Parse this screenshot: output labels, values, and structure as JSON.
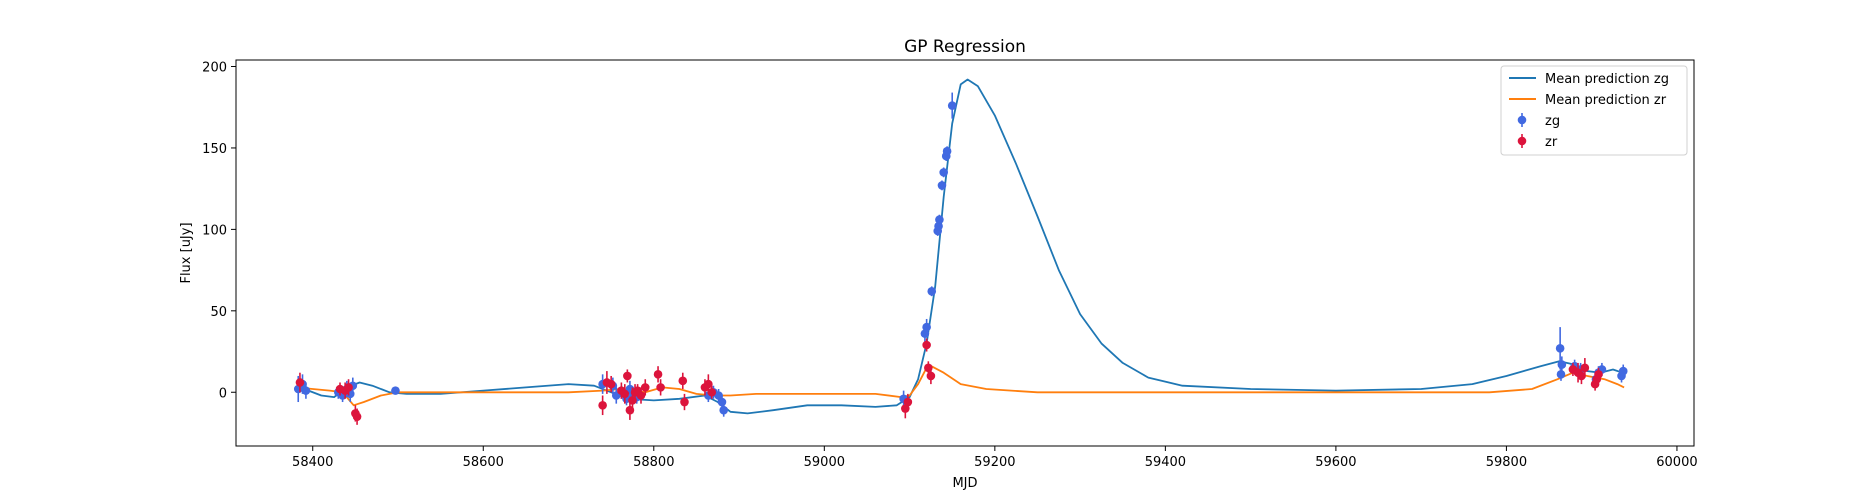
{
  "chart_data": {
    "type": "line",
    "title": "GP Regression",
    "xlabel": "MJD",
    "ylabel": "Flux [uJy]",
    "xlim": [
      58310,
      60020
    ],
    "ylim": [
      -33,
      204
    ],
    "x_ticks": [
      58400,
      58600,
      58800,
      59000,
      59200,
      59400,
      59600,
      59800,
      60000
    ],
    "y_ticks": [
      0,
      50,
      100,
      150,
      200
    ],
    "x_tick_labels": [
      "58400",
      "58600",
      "58800",
      "59000",
      "59200",
      "59400",
      "59600",
      "59800",
      "60000"
    ],
    "y_tick_labels": [
      "0",
      "50",
      "100",
      "150",
      "200"
    ],
    "grid": false,
    "legend": {
      "position": "top-right",
      "entries": [
        "Mean prediction zg",
        "Mean prediction zr",
        "zg",
        "zr"
      ]
    },
    "series": [
      {
        "name": "Mean prediction zg",
        "kind": "line",
        "color": "#1f77b4",
        "points": [
          [
            58380,
            3
          ],
          [
            58395,
            1
          ],
          [
            58410,
            -2
          ],
          [
            58425,
            -3
          ],
          [
            58440,
            3
          ],
          [
            58455,
            6
          ],
          [
            58470,
            4
          ],
          [
            58490,
            0
          ],
          [
            58510,
            -1
          ],
          [
            58550,
            -1
          ],
          [
            58600,
            1
          ],
          [
            58650,
            3
          ],
          [
            58700,
            5
          ],
          [
            58730,
            4
          ],
          [
            58750,
            0
          ],
          [
            58770,
            -4
          ],
          [
            58800,
            -5
          ],
          [
            58830,
            -4
          ],
          [
            58860,
            -2
          ],
          [
            58875,
            -6
          ],
          [
            58890,
            -12
          ],
          [
            58910,
            -13
          ],
          [
            58940,
            -11
          ],
          [
            58980,
            -8
          ],
          [
            59020,
            -8
          ],
          [
            59060,
            -9
          ],
          [
            59085,
            -8
          ],
          [
            59100,
            -3
          ],
          [
            59110,
            8
          ],
          [
            59120,
            30
          ],
          [
            59130,
            65
          ],
          [
            59140,
            120
          ],
          [
            59150,
            165
          ],
          [
            59160,
            189
          ],
          [
            59168,
            192
          ],
          [
            59180,
            188
          ],
          [
            59200,
            170
          ],
          [
            59225,
            140
          ],
          [
            59250,
            108
          ],
          [
            59275,
            75
          ],
          [
            59300,
            48
          ],
          [
            59325,
            30
          ],
          [
            59350,
            18
          ],
          [
            59380,
            9
          ],
          [
            59420,
            4
          ],
          [
            59500,
            2
          ],
          [
            59600,
            1
          ],
          [
            59700,
            2
          ],
          [
            59760,
            5
          ],
          [
            59800,
            10
          ],
          [
            59840,
            16
          ],
          [
            59862,
            19
          ],
          [
            59880,
            17
          ],
          [
            59895,
            13
          ],
          [
            59910,
            12
          ],
          [
            59925,
            14
          ],
          [
            59936,
            12
          ]
        ]
      },
      {
        "name": "Mean prediction zr",
        "kind": "line",
        "color": "#ff7f0e",
        "points": [
          [
            58380,
            3
          ],
          [
            58400,
            2
          ],
          [
            58420,
            1
          ],
          [
            58435,
            0
          ],
          [
            58448,
            -8
          ],
          [
            58460,
            -6
          ],
          [
            58480,
            -2
          ],
          [
            58500,
            0
          ],
          [
            58600,
            0
          ],
          [
            58700,
            0
          ],
          [
            58740,
            1
          ],
          [
            58760,
            2
          ],
          [
            58790,
            0
          ],
          [
            58810,
            3
          ],
          [
            58830,
            2
          ],
          [
            58850,
            -1
          ],
          [
            58870,
            -2
          ],
          [
            58890,
            -2
          ],
          [
            58920,
            -1
          ],
          [
            59000,
            -1
          ],
          [
            59060,
            -1
          ],
          [
            59090,
            -3
          ],
          [
            59100,
            -2
          ],
          [
            59110,
            5
          ],
          [
            59122,
            17
          ],
          [
            59140,
            12
          ],
          [
            59160,
            5
          ],
          [
            59190,
            2
          ],
          [
            59250,
            0
          ],
          [
            59400,
            0
          ],
          [
            59600,
            0
          ],
          [
            59780,
            0
          ],
          [
            59830,
            2
          ],
          [
            59860,
            8
          ],
          [
            59878,
            12
          ],
          [
            59895,
            10
          ],
          [
            59915,
            8
          ],
          [
            59930,
            5
          ],
          [
            59938,
            3
          ]
        ]
      },
      {
        "name": "zg",
        "kind": "scatter",
        "color": "#4169e1",
        "points": [
          [
            58383,
            2,
            8
          ],
          [
            58388,
            5,
            6
          ],
          [
            58392,
            1,
            5
          ],
          [
            58430,
            0,
            4
          ],
          [
            58435,
            -2,
            4
          ],
          [
            58440,
            2,
            5
          ],
          [
            58444,
            -1,
            5
          ],
          [
            58447,
            4,
            5
          ],
          [
            58497,
            1,
            2
          ],
          [
            58740,
            5,
            6
          ],
          [
            58752,
            4,
            5
          ],
          [
            58756,
            -2,
            5
          ],
          [
            58762,
            0,
            4
          ],
          [
            58768,
            -4,
            4
          ],
          [
            58772,
            2,
            5
          ],
          [
            58776,
            -1,
            4
          ],
          [
            58780,
            -3,
            4
          ],
          [
            58864,
            -2,
            4
          ],
          [
            58870,
            0,
            4
          ],
          [
            58876,
            -2,
            4
          ],
          [
            58880,
            -6,
            4
          ],
          [
            58882,
            -11,
            4
          ],
          [
            59093,
            -4,
            5
          ],
          [
            59118,
            36,
            5
          ],
          [
            59120,
            40,
            5
          ],
          [
            59126,
            62,
            3
          ],
          [
            59133,
            99,
            3
          ],
          [
            59134,
            102,
            3
          ],
          [
            59135,
            106,
            3
          ],
          [
            59138,
            127,
            3
          ],
          [
            59140,
            135,
            3
          ],
          [
            59143,
            145,
            3
          ],
          [
            59144,
            148,
            3
          ],
          [
            59150,
            176,
            8
          ],
          [
            59863,
            27,
            13
          ],
          [
            59865,
            17,
            5
          ],
          [
            59864,
            11,
            4
          ],
          [
            59880,
            16,
            4
          ],
          [
            59887,
            14,
            4
          ],
          [
            59905,
            8,
            4
          ],
          [
            59908,
            12,
            4
          ],
          [
            59912,
            14,
            4
          ],
          [
            59935,
            10,
            4
          ],
          [
            59937,
            13,
            4
          ]
        ]
      },
      {
        "name": "zr",
        "kind": "scatter",
        "color": "#dc143c",
        "points": [
          [
            58385,
            6,
            6
          ],
          [
            58432,
            2,
            4
          ],
          [
            58438,
            1,
            5
          ],
          [
            58442,
            3,
            5
          ],
          [
            58450,
            -13,
            5
          ],
          [
            58452,
            -15,
            5
          ],
          [
            58740,
            -8,
            6
          ],
          [
            58745,
            6,
            7
          ],
          [
            58750,
            5,
            5
          ],
          [
            58762,
            1,
            5
          ],
          [
            58766,
            -1,
            6
          ],
          [
            58769,
            10,
            4
          ],
          [
            58772,
            -11,
            6
          ],
          [
            58775,
            -5,
            8
          ],
          [
            58778,
            0,
            5
          ],
          [
            58781,
            1,
            4
          ],
          [
            58785,
            -2,
            5
          ],
          [
            58790,
            3,
            5
          ],
          [
            58805,
            11,
            5
          ],
          [
            58808,
            3,
            5
          ],
          [
            58834,
            7,
            5
          ],
          [
            58836,
            -6,
            5
          ],
          [
            58860,
            3,
            5
          ],
          [
            58864,
            5,
            6
          ],
          [
            58868,
            0,
            4
          ],
          [
            59095,
            -10,
            6
          ],
          [
            59098,
            -6,
            5
          ],
          [
            59120,
            29,
            4
          ],
          [
            59122,
            15,
            4
          ],
          [
            59125,
            10,
            5
          ],
          [
            59878,
            14,
            4
          ],
          [
            59884,
            12,
            6
          ],
          [
            59888,
            10,
            5
          ],
          [
            59892,
            15,
            6
          ],
          [
            59904,
            5,
            4
          ],
          [
            59906,
            8,
            4
          ],
          [
            59908,
            11,
            4
          ]
        ]
      }
    ]
  }
}
